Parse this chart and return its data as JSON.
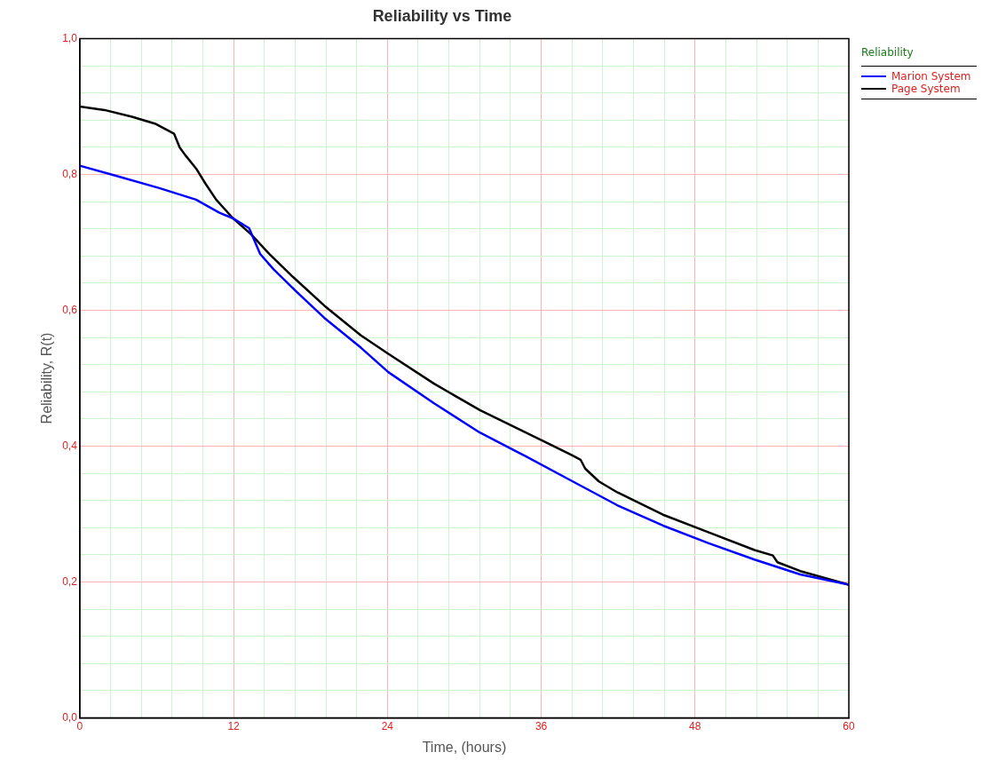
{
  "chart_data": {
    "type": "line",
    "title": "Reliability vs Time",
    "xlabel": "Time, (hours)",
    "ylabel": "Reliability, R(t)",
    "legend_title": "Reliability",
    "legend": "right",
    "grid": true,
    "marker": "none",
    "line_style": "solid",
    "xlim": [
      0,
      60
    ],
    "ylim": [
      0,
      1
    ],
    "xticks": [
      0,
      {
        "value": 2.4,
        "label": null
      },
      {
        "value": 4.8,
        "label": null
      },
      {
        "value": 7.2,
        "label": null
      },
      {
        "value": 9.6,
        "label": null
      },
      12,
      {
        "value": 14.4,
        "label": null
      },
      {
        "value": 16.8,
        "label": null
      },
      {
        "value": 19.2,
        "label": null
      },
      {
        "value": 21.6,
        "label": null
      },
      24,
      {
        "value": 26.4,
        "label": null
      },
      {
        "value": 28.8,
        "label": null
      },
      {
        "value": 31.2,
        "label": null
      },
      {
        "value": 33.6,
        "label": null
      },
      36,
      {
        "value": 38.4,
        "label": null
      },
      {
        "value": 40.8,
        "label": null
      },
      {
        "value": 43.2,
        "label": null
      },
      {
        "value": 45.6,
        "label": null
      },
      48,
      {
        "value": 50.4,
        "label": null
      },
      {
        "value": 52.8,
        "label": null
      },
      {
        "value": 55.2,
        "label": null
      },
      {
        "value": 57.6,
        "label": null
      },
      60
    ],
    "yticks": [
      {
        "value": 0,
        "label": "0,0"
      },
      {
        "value": 0.04,
        "label": null
      },
      {
        "value": 0.08,
        "label": null
      },
      {
        "value": 0.12,
        "label": null
      },
      {
        "value": 0.16,
        "label": null
      },
      {
        "value": 0.2,
        "label": "0,2"
      },
      {
        "value": 0.24,
        "label": null
      },
      {
        "value": 0.28,
        "label": null
      },
      {
        "value": 0.32,
        "label": null
      },
      {
        "value": 0.36,
        "label": null
      },
      {
        "value": 0.4,
        "label": "0,4"
      },
      {
        "value": 0.44,
        "label": null
      },
      {
        "value": 0.48,
        "label": null
      },
      {
        "value": 0.52,
        "label": null
      },
      {
        "value": 0.56,
        "label": null
      },
      {
        "value": 0.6,
        "label": "0,6"
      },
      {
        "value": 0.64,
        "label": null
      },
      {
        "value": 0.68,
        "label": null
      },
      {
        "value": 0.72,
        "label": null
      },
      {
        "value": 0.76,
        "label": null
      },
      {
        "value": 0.8,
        "label": "0,8"
      },
      {
        "value": 0.84,
        "label": null
      },
      {
        "value": 0.88,
        "label": null
      },
      {
        "value": 0.92,
        "label": null
      },
      {
        "value": 0.96,
        "label": null
      },
      {
        "value": 1,
        "label": "1,0"
      }
    ],
    "series": [
      {
        "name": "Marion System",
        "color": "#0000ff",
        "x": [
          0,
          2.64,
          6.21,
          9.07,
          10.86,
          12,
          13.21,
          14.07,
          15.14,
          16.93,
          19.07,
          21.93,
          24.07,
          27.64,
          31.21,
          34.79,
          38.36,
          41.93,
          45.5,
          49.07,
          52.64,
          56.21,
          60
        ],
        "values": [
          0.813,
          0.799,
          0.78,
          0.763,
          0.744,
          0.735,
          0.721,
          0.683,
          0.66,
          0.627,
          0.589,
          0.545,
          0.509,
          0.463,
          0.42,
          0.385,
          0.349,
          0.313,
          0.283,
          0.257,
          0.233,
          0.211,
          0.196
        ]
      },
      {
        "name": "Page System",
        "color": "#000000",
        "x": [
          0,
          1.93,
          4.07,
          5.86,
          7.36,
          7.79,
          8.21,
          9.07,
          9.79,
          10.64,
          11.93,
          13.36,
          14.79,
          16.64,
          19.07,
          21.93,
          24.07,
          27.64,
          31.21,
          34.79,
          36.21,
          38.36,
          39.07,
          39.43,
          40.5,
          41.93,
          45.5,
          49.07,
          52.64,
          54.07,
          54.43,
          56.21,
          60
        ],
        "values": [
          0.9,
          0.895,
          0.885,
          0.875,
          0.86,
          0.84,
          0.829,
          0.809,
          0.787,
          0.763,
          0.736,
          0.712,
          0.683,
          0.649,
          0.607,
          0.563,
          0.536,
          0.492,
          0.453,
          0.42,
          0.407,
          0.387,
          0.38,
          0.367,
          0.348,
          0.332,
          0.299,
          0.273,
          0.247,
          0.239,
          0.229,
          0.216,
          0.196
        ]
      }
    ]
  }
}
